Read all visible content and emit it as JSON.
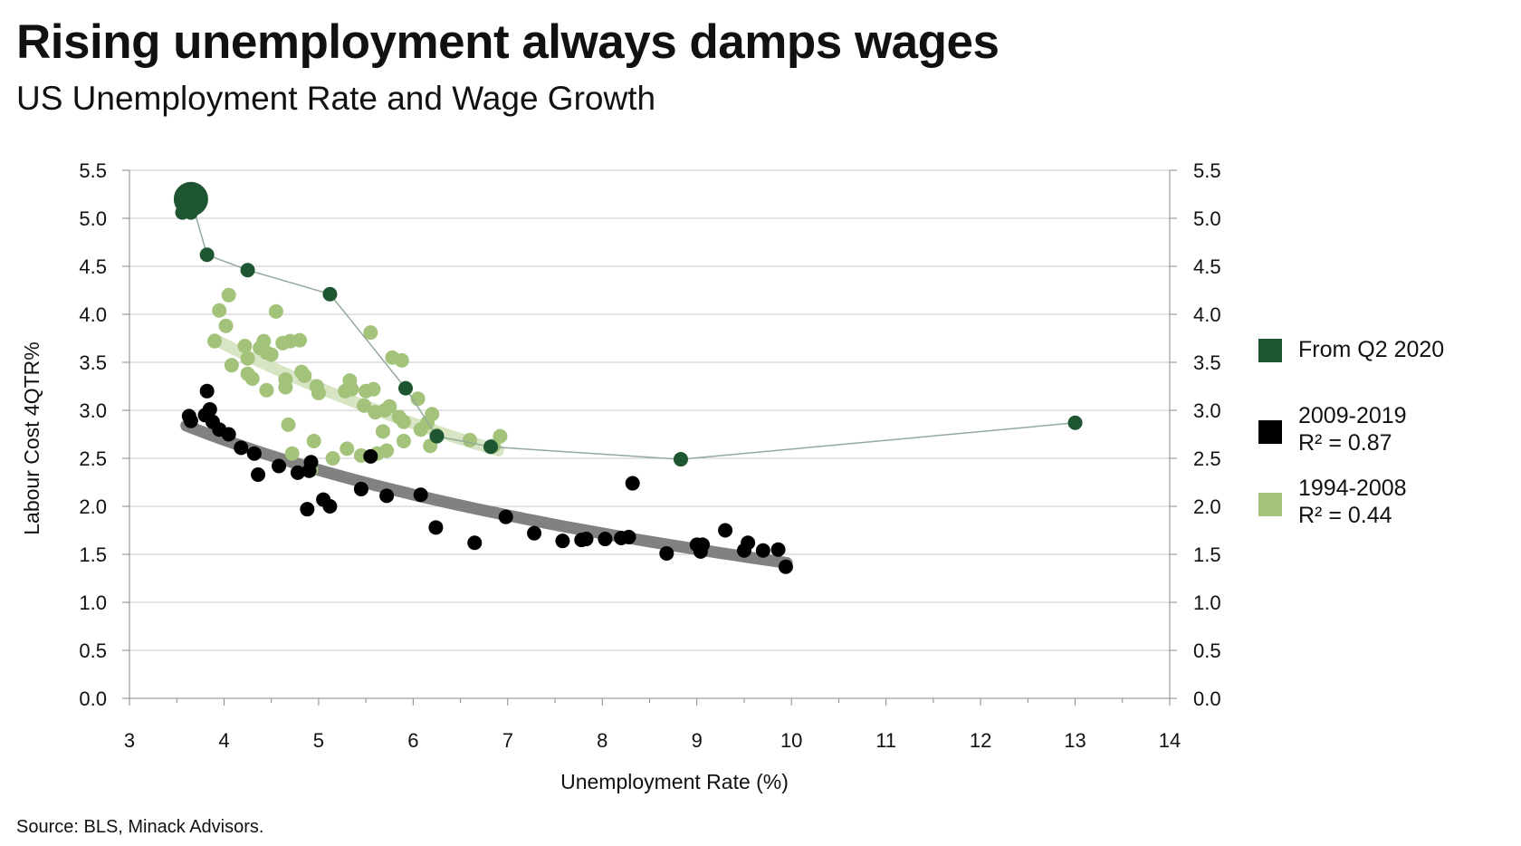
{
  "header": {
    "title": "Rising unemployment always damps wages",
    "subtitle": "US Unemployment Rate and Wage Growth"
  },
  "footer": {
    "source": "Source: BLS, Minack Advisors."
  },
  "legend": [
    {
      "lines": [
        "From Q2 2020"
      ],
      "color": "#1e5631"
    },
    {
      "lines": [
        "2009-2019",
        "R² = 0.87"
      ],
      "color": "#000000"
    },
    {
      "lines": [
        "1994-2008",
        " R² = 0.44"
      ],
      "color": "#a3c27a"
    }
  ],
  "chart_data": {
    "type": "scatter",
    "title": "Rising unemployment always damps wages",
    "subtitle": "US Unemployment Rate and Wage Growth",
    "xlabel": "Unemployment Rate (%)",
    "ylabel": "Labour Cost 4QTR%",
    "xlim": [
      3,
      14
    ],
    "ylim": [
      0,
      5.5
    ],
    "x_ticks": [
      "3",
      "4",
      "5",
      "6",
      "7",
      "8",
      "9",
      "10",
      "11",
      "12",
      "13",
      "14"
    ],
    "y_ticks": [
      "0.0",
      "0.5",
      "1.0",
      "1.5",
      "2.0",
      "2.5",
      "3.0",
      "3.5",
      "4.0",
      "4.5",
      "5.0",
      "5.5"
    ],
    "secondary_y_axis": true,
    "grid": "horizontal",
    "legend_position": "right",
    "series": [
      {
        "name": "1994-2008",
        "color": "#a3c27a",
        "trendline": {
          "type": "logarithmic",
          "r2": 0.44,
          "x_range": [
            3.9,
            6.9
          ]
        },
        "points": [
          [
            3.9,
            3.72
          ],
          [
            3.95,
            4.04
          ],
          [
            4.02,
            3.88
          ],
          [
            4.05,
            4.2
          ],
          [
            4.08,
            3.47
          ],
          [
            4.22,
            3.67
          ],
          [
            4.25,
            3.54
          ],
          [
            4.25,
            3.38
          ],
          [
            4.3,
            3.33
          ],
          [
            4.38,
            3.65
          ],
          [
            4.42,
            3.72
          ],
          [
            4.45,
            3.6
          ],
          [
            4.45,
            3.21
          ],
          [
            4.5,
            3.58
          ],
          [
            4.55,
            4.03
          ],
          [
            4.62,
            3.7
          ],
          [
            4.65,
            3.32
          ],
          [
            4.65,
            3.24
          ],
          [
            4.68,
            2.85
          ],
          [
            4.7,
            3.72
          ],
          [
            4.72,
            2.55
          ],
          [
            4.8,
            3.73
          ],
          [
            4.82,
            3.4
          ],
          [
            4.85,
            3.36
          ],
          [
            4.95,
            2.68
          ],
          [
            4.98,
            3.25
          ],
          [
            5.0,
            3.18
          ],
          [
            5.15,
            2.5
          ],
          [
            5.28,
            3.2
          ],
          [
            5.3,
            2.6
          ],
          [
            5.33,
            3.31
          ],
          [
            5.35,
            3.22
          ],
          [
            5.45,
            2.53
          ],
          [
            5.48,
            3.05
          ],
          [
            5.5,
            3.2
          ],
          [
            5.55,
            3.81
          ],
          [
            5.58,
            3.22
          ],
          [
            5.6,
            2.98
          ],
          [
            5.62,
            2.55
          ],
          [
            5.68,
            2.78
          ],
          [
            5.7,
            3.0
          ],
          [
            5.72,
            2.58
          ],
          [
            5.75,
            3.04
          ],
          [
            5.78,
            3.55
          ],
          [
            5.85,
            2.93
          ],
          [
            5.88,
            3.52
          ],
          [
            5.9,
            2.88
          ],
          [
            5.9,
            2.68
          ],
          [
            6.05,
            3.12
          ],
          [
            6.08,
            2.8
          ],
          [
            6.15,
            2.87
          ],
          [
            6.18,
            2.63
          ],
          [
            6.2,
            2.96
          ],
          [
            6.25,
            2.74
          ],
          [
            6.6,
            2.69
          ],
          [
            6.85,
            2.63
          ],
          [
            6.92,
            2.73
          ],
          [
            4.92,
            2.38
          ]
        ]
      },
      {
        "name": "2009-2019",
        "color": "#000000",
        "trendline": {
          "type": "logarithmic",
          "r2": 0.87,
          "x_range": [
            3.6,
            9.95
          ]
        },
        "points": [
          [
            3.63,
            2.94
          ],
          [
            3.65,
            2.89
          ],
          [
            3.8,
            2.95
          ],
          [
            3.82,
            3.2
          ],
          [
            3.85,
            3.01
          ],
          [
            3.88,
            2.88
          ],
          [
            3.95,
            2.8
          ],
          [
            4.05,
            2.75
          ],
          [
            4.18,
            2.61
          ],
          [
            4.32,
            2.55
          ],
          [
            4.36,
            2.33
          ],
          [
            4.58,
            2.42
          ],
          [
            4.78,
            2.35
          ],
          [
            4.88,
            1.97
          ],
          [
            4.9,
            2.37
          ],
          [
            4.92,
            2.46
          ],
          [
            5.05,
            2.07
          ],
          [
            5.12,
            2.0
          ],
          [
            5.45,
            2.18
          ],
          [
            5.55,
            2.52
          ],
          [
            5.72,
            2.11
          ],
          [
            6.08,
            2.12
          ],
          [
            6.24,
            1.78
          ],
          [
            6.65,
            1.62
          ],
          [
            6.98,
            1.89
          ],
          [
            7.28,
            1.72
          ],
          [
            7.58,
            1.64
          ],
          [
            7.78,
            1.65
          ],
          [
            7.83,
            1.66
          ],
          [
            8.03,
            1.66
          ],
          [
            8.2,
            1.67
          ],
          [
            8.28,
            1.68
          ],
          [
            8.32,
            2.24
          ],
          [
            8.68,
            1.51
          ],
          [
            9.0,
            1.6
          ],
          [
            9.04,
            1.53
          ],
          [
            9.06,
            1.6
          ],
          [
            9.3,
            1.75
          ],
          [
            9.5,
            1.54
          ],
          [
            9.54,
            1.62
          ],
          [
            9.7,
            1.54
          ],
          [
            9.86,
            1.55
          ],
          [
            9.94,
            1.37
          ]
        ]
      },
      {
        "name": "From Q2 2020",
        "color": "#1e5631",
        "connected": true,
        "points": [
          [
            3.65,
            5.2
          ],
          [
            3.82,
            4.62
          ],
          [
            4.25,
            4.46
          ],
          [
            5.12,
            4.21
          ],
          [
            5.92,
            3.23
          ],
          [
            6.25,
            2.73
          ],
          [
            6.82,
            2.62
          ],
          [
            8.83,
            2.49
          ],
          [
            13.0,
            2.87
          ]
        ],
        "highlighted_point": [
          3.65,
          5.2
        ],
        "extra_points": [
          [
            3.56,
            5.06
          ],
          [
            3.65,
            5.06
          ]
        ]
      }
    ]
  }
}
